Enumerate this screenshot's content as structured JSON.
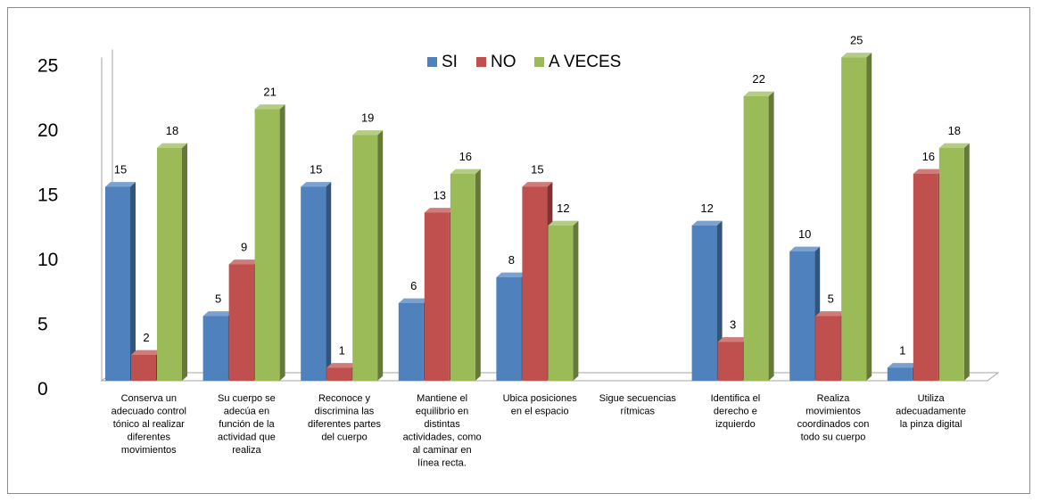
{
  "chart_data": {
    "type": "bar",
    "title": "",
    "xlabel": "",
    "ylabel": "",
    "ylim": [
      0,
      25
    ],
    "yticks": [
      0,
      5,
      10,
      15,
      20,
      25
    ],
    "legend_position": "top-center",
    "categories": [
      [
        "Conserva un",
        "adecuado control",
        "tónico al realizar",
        "diferentes",
        "movimientos"
      ],
      [
        "Su cuerpo se",
        "adecúa en",
        "función de la",
        "actividad que",
        "realiza"
      ],
      [
        "Reconoce y",
        "discrimina las",
        "diferentes partes",
        "del cuerpo"
      ],
      [
        "Mantiene el",
        "equilibrio en",
        "distintas",
        "actividades, como",
        "al caminar en",
        "línea recta."
      ],
      [
        "Ubica posiciones",
        "en el espacio"
      ],
      [
        "Sigue secuencias",
        "rítmicas"
      ],
      [
        "Identifica el",
        "derecho e",
        "izquierdo"
      ],
      [
        "Realiza",
        "movimientos",
        "coordinados con",
        "todo su cuerpo"
      ],
      [
        "Utiliza",
        "adecuadamente",
        "la pinza digital"
      ]
    ],
    "series": [
      {
        "name": "SI",
        "color": "#4f81bd",
        "values": [
          15,
          5,
          15,
          6,
          8,
          0,
          12,
          10,
          1
        ]
      },
      {
        "name": "NO",
        "color": "#c0504d",
        "values": [
          2,
          9,
          1,
          13,
          15,
          0,
          3,
          5,
          16
        ]
      },
      {
        "name": "A VECES",
        "color": "#9bbb59",
        "values": [
          18,
          21,
          19,
          16,
          12,
          0,
          22,
          25,
          18
        ]
      }
    ]
  }
}
